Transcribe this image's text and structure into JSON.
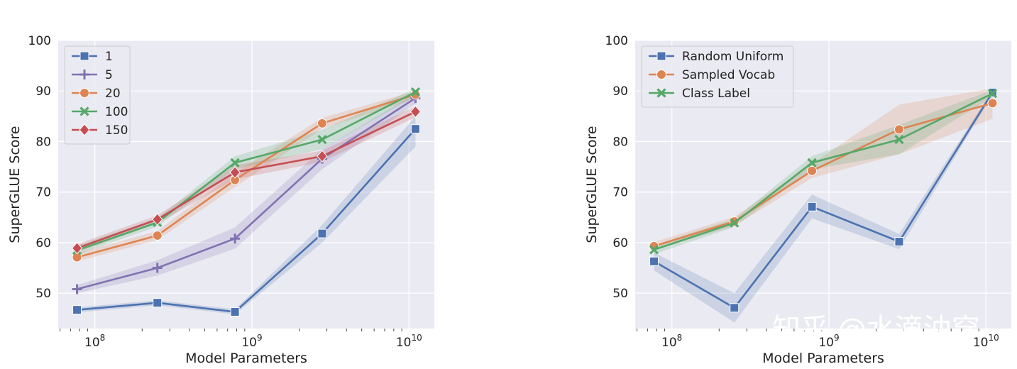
{
  "chart_data": [
    {
      "type": "line",
      "xscale": "log",
      "xlabel": "Model Parameters",
      "ylabel": "SuperGLUE Score",
      "ylim": [
        43,
        100
      ],
      "yticks": [
        50,
        60,
        70,
        80,
        90,
        100
      ],
      "xticks": [
        {
          "value": 100000000,
          "base": "10",
          "exp": "8"
        },
        {
          "value": 1000000000,
          "base": "10",
          "exp": "9"
        },
        {
          "value": 10000000000,
          "base": "10",
          "exp": "10"
        }
      ],
      "x": [
        77000000,
        250000000,
        780000000,
        2800000000,
        11000000000
      ],
      "grid": true,
      "legend_loc": "top-left",
      "series": [
        {
          "name": "1",
          "color": "#4c72b0",
          "marker": "square",
          "values": [
            46.7,
            48.1,
            46.3,
            61.8,
            82.5
          ],
          "lower": [
            46.2,
            47.6,
            45.8,
            60.0,
            79.0
          ],
          "upper": [
            47.2,
            48.6,
            46.8,
            63.5,
            85.0
          ]
        },
        {
          "name": "5",
          "color": "#8172b2",
          "marker": "plus",
          "values": [
            50.8,
            55.0,
            60.8,
            76.6,
            88.6
          ],
          "lower": [
            50.0,
            53.5,
            58.8,
            74.5,
            87.5
          ],
          "upper": [
            51.6,
            56.5,
            63.0,
            78.5,
            89.5
          ]
        },
        {
          "name": "20",
          "color": "#dd8452",
          "marker": "circle",
          "values": [
            57.1,
            61.4,
            72.4,
            83.6,
            89.3
          ],
          "lower": [
            56.3,
            60.5,
            71.0,
            82.5,
            88.5
          ],
          "upper": [
            57.9,
            62.3,
            73.8,
            84.7,
            90.0
          ]
        },
        {
          "name": "100",
          "color": "#55a868",
          "marker": "x",
          "values": [
            58.5,
            64.0,
            75.8,
            80.4,
            89.8
          ],
          "lower": [
            57.6,
            63.2,
            74.5,
            78.5,
            89.0
          ],
          "upper": [
            59.4,
            64.8,
            77.1,
            82.3,
            90.5
          ]
        },
        {
          "name": "150",
          "color": "#c44e52",
          "marker": "diamond",
          "values": [
            58.9,
            64.6,
            73.9,
            77.1,
            85.9
          ],
          "lower": [
            58.1,
            63.8,
            72.5,
            76.0,
            84.8
          ],
          "upper": [
            59.7,
            65.4,
            75.3,
            78.2,
            87.0
          ]
        }
      ]
    },
    {
      "type": "line",
      "xscale": "log",
      "xlabel": "Model Parameters",
      "ylabel": "SuperGLUE Score",
      "ylim": [
        43,
        100
      ],
      "yticks": [
        50,
        60,
        70,
        80,
        90,
        100
      ],
      "xticks": [
        {
          "value": 100000000,
          "base": "10",
          "exp": "8"
        },
        {
          "value": 1000000000,
          "base": "10",
          "exp": "9"
        },
        {
          "value": 10000000000,
          "base": "10",
          "exp": "10"
        }
      ],
      "x": [
        77000000,
        250000000,
        780000000,
        2800000000,
        11000000000
      ],
      "grid": true,
      "legend_loc": "top-left",
      "series": [
        {
          "name": "Random Uniform",
          "color": "#4c72b0",
          "marker": "square",
          "values": [
            56.3,
            47.1,
            67.1,
            60.2,
            89.7
          ],
          "lower": [
            54.5,
            44.2,
            64.8,
            58.7,
            89.2
          ],
          "upper": [
            58.0,
            50.0,
            69.5,
            61.7,
            90.2
          ]
        },
        {
          "name": "Sampled Vocab",
          "color": "#dd8452",
          "marker": "circle",
          "values": [
            59.3,
            64.2,
            74.2,
            82.4,
            87.6
          ],
          "lower": [
            58.5,
            63.3,
            72.8,
            77.5,
            84.5
          ],
          "upper": [
            60.1,
            65.1,
            75.6,
            87.3,
            90.5
          ]
        },
        {
          "name": "Class Label",
          "color": "#55a868",
          "marker": "x",
          "values": [
            58.6,
            63.9,
            75.8,
            80.4,
            89.5
          ],
          "lower": [
            57.7,
            63.1,
            74.5,
            77.5,
            88.8
          ],
          "upper": [
            59.5,
            64.7,
            77.1,
            83.3,
            90.2
          ]
        }
      ]
    }
  ],
  "watermark": "知乎 @水滴油穿"
}
